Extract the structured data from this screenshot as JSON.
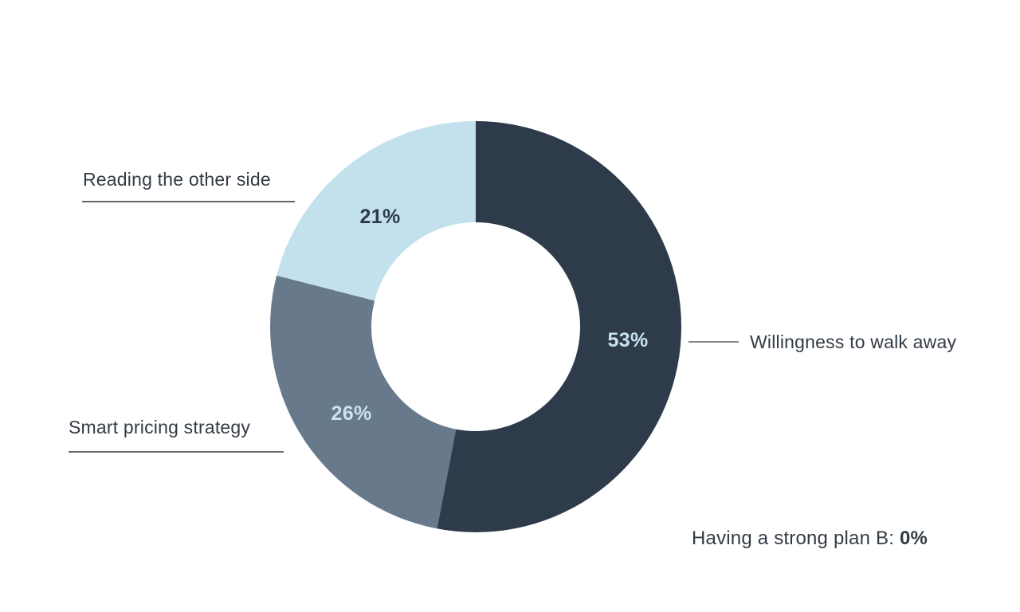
{
  "chart_data": {
    "type": "pie",
    "variant": "donut",
    "title": "",
    "categories": [
      "Willingness to walk away",
      "Smart pricing strategy",
      "Reading the other side",
      "Having a strong plan B"
    ],
    "values": [
      53,
      26,
      21,
      0
    ],
    "unit": "%",
    "start_angle_deg": 0,
    "direction": "clockwise",
    "hole_ratio": 0.51,
    "legend_position": "external-callouts",
    "slices": [
      {
        "label": "Willingness to walk away",
        "value": 53,
        "pct_label": "53%",
        "color": "#2e3b4b",
        "label_color": "#c9e3ef"
      },
      {
        "label": "Smart pricing strategy",
        "value": 26,
        "pct_label": "26%",
        "color": "#68798b",
        "label_color": "#c9e3ef"
      },
      {
        "label": "Reading the other side",
        "value": 21,
        "pct_label": "21%",
        "color": "#c3e1ed",
        "label_color": "#2e3b4b"
      }
    ],
    "annotation": "Having a strong plan B: 0%"
  },
  "labels": {
    "willingness": "Willingness to walk away",
    "smart": "Smart pricing strategy",
    "reading": "Reading the other side",
    "plan_b_prefix": "Having a strong plan B: ",
    "plan_b_value": "0%"
  },
  "colors": {
    "background": "#ffffff",
    "text": "#333b45",
    "underline": "#63666a",
    "connector": "#85888c"
  }
}
